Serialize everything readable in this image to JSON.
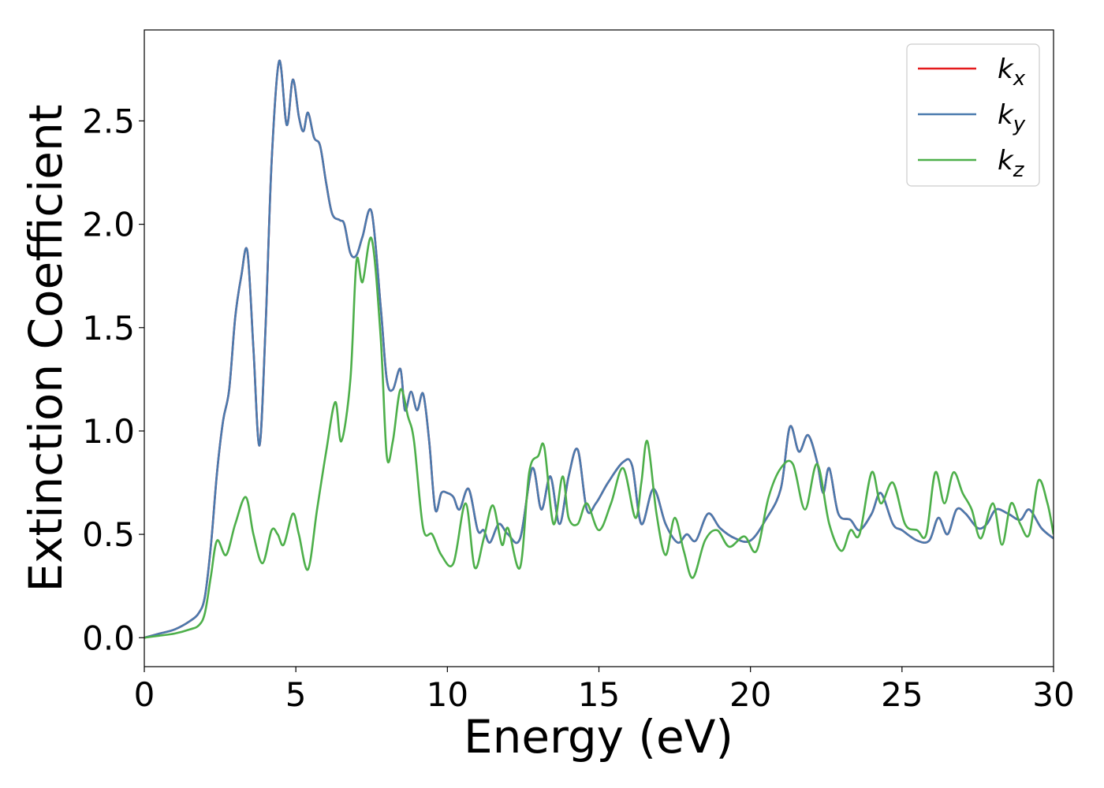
{
  "chart_data": {
    "type": "line",
    "title": "",
    "xlabel": "Energy (eV)",
    "ylabel": "Extinction Coefficient",
    "xlim": [
      0,
      30
    ],
    "ylim": [
      -0.14,
      2.94
    ],
    "xticks": [
      0,
      5,
      10,
      15,
      20,
      25,
      30
    ],
    "xtick_labels": [
      "0",
      "5",
      "10",
      "15",
      "20",
      "25",
      "30"
    ],
    "yticks": [
      0.0,
      0.5,
      1.0,
      1.5,
      2.0,
      2.5
    ],
    "ytick_labels": [
      "0.0",
      "0.5",
      "1.0",
      "1.5",
      "2.0",
      "2.5"
    ],
    "grid": false,
    "legend_position": "top-right",
    "series": [
      {
        "name": "k_x",
        "legend_base": "k",
        "legend_sub": "x",
        "color": "#e41a1c",
        "x": [
          0,
          0.5,
          1,
          1.5,
          1.8,
          2.0,
          2.2,
          2.4,
          2.6,
          2.8,
          3.0,
          3.2,
          3.4,
          3.6,
          3.8,
          4.0,
          4.2,
          4.45,
          4.7,
          4.9,
          5.1,
          5.25,
          5.4,
          5.6,
          5.8,
          6.0,
          6.2,
          6.45,
          6.6,
          6.8,
          7.0,
          7.2,
          7.5,
          7.8,
          8.0,
          8.2,
          8.45,
          8.6,
          8.8,
          9.0,
          9.2,
          9.4,
          9.6,
          9.8,
          10.0,
          10.2,
          10.4,
          10.7,
          11.0,
          11.2,
          11.4,
          11.7,
          12.0,
          12.4,
          12.8,
          13.1,
          13.4,
          13.7,
          14.0,
          14.3,
          14.6,
          14.9,
          15.3,
          15.8,
          16.1,
          16.4,
          16.8,
          17.2,
          17.6,
          17.9,
          18.2,
          18.6,
          19.0,
          19.5,
          20.0,
          20.5,
          21.0,
          21.3,
          21.6,
          21.9,
          22.2,
          22.4,
          22.6,
          22.9,
          23.3,
          23.6,
          24.0,
          24.3,
          24.7,
          25.0,
          25.5,
          25.9,
          26.2,
          26.5,
          26.8,
          27.1,
          27.5,
          27.8,
          28.1,
          28.5,
          28.9,
          29.2,
          29.6,
          30.0
        ],
        "y": [
          0.0,
          0.02,
          0.04,
          0.08,
          0.12,
          0.2,
          0.45,
          0.8,
          1.05,
          1.2,
          1.55,
          1.75,
          1.87,
          1.4,
          0.93,
          1.5,
          2.3,
          2.79,
          2.48,
          2.7,
          2.52,
          2.45,
          2.54,
          2.42,
          2.38,
          2.2,
          2.05,
          2.02,
          2.0,
          1.86,
          1.85,
          1.94,
          2.06,
          1.6,
          1.25,
          1.2,
          1.3,
          1.1,
          1.19,
          1.1,
          1.18,
          0.95,
          0.62,
          0.7,
          0.7,
          0.68,
          0.62,
          0.72,
          0.52,
          0.52,
          0.46,
          0.55,
          0.5,
          0.48,
          0.82,
          0.62,
          0.78,
          0.55,
          0.78,
          0.91,
          0.62,
          0.65,
          0.75,
          0.85,
          0.83,
          0.55,
          0.72,
          0.55,
          0.46,
          0.5,
          0.47,
          0.6,
          0.53,
          0.48,
          0.47,
          0.57,
          0.72,
          1.02,
          0.9,
          0.98,
          0.85,
          0.7,
          0.82,
          0.6,
          0.57,
          0.52,
          0.6,
          0.7,
          0.55,
          0.52,
          0.47,
          0.47,
          0.58,
          0.5,
          0.62,
          0.6,
          0.53,
          0.55,
          0.62,
          0.6,
          0.57,
          0.62,
          0.53,
          0.48
        ]
      },
      {
        "name": "k_y",
        "legend_base": "k",
        "legend_sub": "y",
        "color": "#4a7aae",
        "x": [
          0,
          0.5,
          1,
          1.5,
          1.8,
          2.0,
          2.2,
          2.4,
          2.6,
          2.8,
          3.0,
          3.2,
          3.4,
          3.6,
          3.8,
          4.0,
          4.2,
          4.45,
          4.7,
          4.9,
          5.1,
          5.25,
          5.4,
          5.6,
          5.8,
          6.0,
          6.2,
          6.45,
          6.6,
          6.8,
          7.0,
          7.2,
          7.5,
          7.8,
          8.0,
          8.2,
          8.45,
          8.6,
          8.8,
          9.0,
          9.2,
          9.4,
          9.6,
          9.8,
          10.0,
          10.2,
          10.4,
          10.7,
          11.0,
          11.2,
          11.4,
          11.7,
          12.0,
          12.4,
          12.8,
          13.1,
          13.4,
          13.7,
          14.0,
          14.3,
          14.6,
          14.9,
          15.3,
          15.8,
          16.1,
          16.4,
          16.8,
          17.2,
          17.6,
          17.9,
          18.2,
          18.6,
          19.0,
          19.5,
          20.0,
          20.5,
          21.0,
          21.3,
          21.6,
          21.9,
          22.2,
          22.4,
          22.6,
          22.9,
          23.3,
          23.6,
          24.0,
          24.3,
          24.7,
          25.0,
          25.5,
          25.9,
          26.2,
          26.5,
          26.8,
          27.1,
          27.5,
          27.8,
          28.1,
          28.5,
          28.9,
          29.2,
          29.6,
          30.0
        ],
        "y": [
          0.0,
          0.02,
          0.04,
          0.08,
          0.12,
          0.2,
          0.45,
          0.8,
          1.05,
          1.2,
          1.55,
          1.75,
          1.87,
          1.4,
          0.93,
          1.5,
          2.3,
          2.79,
          2.48,
          2.7,
          2.52,
          2.45,
          2.54,
          2.42,
          2.38,
          2.2,
          2.05,
          2.02,
          2.0,
          1.86,
          1.85,
          1.94,
          2.06,
          1.6,
          1.25,
          1.2,
          1.3,
          1.1,
          1.19,
          1.1,
          1.18,
          0.95,
          0.62,
          0.7,
          0.7,
          0.68,
          0.62,
          0.72,
          0.52,
          0.52,
          0.46,
          0.55,
          0.5,
          0.48,
          0.82,
          0.62,
          0.78,
          0.55,
          0.78,
          0.91,
          0.62,
          0.65,
          0.75,
          0.85,
          0.83,
          0.55,
          0.72,
          0.55,
          0.46,
          0.5,
          0.47,
          0.6,
          0.53,
          0.48,
          0.47,
          0.57,
          0.72,
          1.02,
          0.9,
          0.98,
          0.85,
          0.7,
          0.82,
          0.6,
          0.57,
          0.52,
          0.6,
          0.7,
          0.55,
          0.52,
          0.47,
          0.47,
          0.58,
          0.5,
          0.62,
          0.6,
          0.53,
          0.55,
          0.62,
          0.6,
          0.57,
          0.62,
          0.53,
          0.48
        ]
      },
      {
        "name": "k_z",
        "legend_base": "k",
        "legend_sub": "z",
        "color": "#4daf4a",
        "x": [
          0,
          0.5,
          1,
          1.5,
          1.8,
          2.0,
          2.2,
          2.4,
          2.7,
          3.0,
          3.35,
          3.6,
          3.9,
          4.2,
          4.4,
          4.6,
          4.9,
          5.1,
          5.4,
          5.7,
          6.0,
          6.3,
          6.5,
          6.8,
          7.0,
          7.2,
          7.5,
          7.8,
          8.0,
          8.2,
          8.45,
          8.7,
          8.9,
          9.2,
          9.5,
          9.8,
          10.2,
          10.6,
          10.9,
          11.2,
          11.5,
          11.8,
          12.0,
          12.4,
          12.7,
          13.0,
          13.2,
          13.5,
          13.8,
          14.0,
          14.3,
          14.6,
          15.0,
          15.4,
          15.8,
          16.2,
          16.4,
          16.6,
          16.9,
          17.2,
          17.5,
          17.8,
          18.1,
          18.5,
          18.9,
          19.3,
          19.8,
          20.2,
          20.6,
          21.0,
          21.4,
          21.8,
          22.2,
          22.6,
          23.0,
          23.3,
          23.6,
          24.0,
          24.3,
          24.7,
          25.1,
          25.5,
          25.8,
          26.1,
          26.4,
          26.7,
          27.0,
          27.3,
          27.6,
          28.0,
          28.3,
          28.6,
          28.9,
          29.2,
          29.5,
          29.8,
          30.0
        ],
        "y": [
          0.0,
          0.01,
          0.02,
          0.04,
          0.06,
          0.12,
          0.3,
          0.47,
          0.4,
          0.55,
          0.68,
          0.5,
          0.36,
          0.52,
          0.5,
          0.45,
          0.6,
          0.5,
          0.33,
          0.62,
          0.9,
          1.14,
          0.95,
          1.25,
          1.82,
          1.72,
          1.93,
          1.45,
          0.88,
          0.95,
          1.2,
          1.07,
          0.95,
          0.53,
          0.5,
          0.4,
          0.36,
          0.65,
          0.34,
          0.48,
          0.64,
          0.45,
          0.53,
          0.34,
          0.8,
          0.88,
          0.92,
          0.55,
          0.78,
          0.58,
          0.55,
          0.65,
          0.52,
          0.65,
          0.82,
          0.58,
          0.75,
          0.95,
          0.6,
          0.4,
          0.58,
          0.42,
          0.29,
          0.47,
          0.52,
          0.44,
          0.49,
          0.42,
          0.68,
          0.82,
          0.84,
          0.62,
          0.84,
          0.55,
          0.42,
          0.52,
          0.5,
          0.8,
          0.65,
          0.75,
          0.55,
          0.52,
          0.5,
          0.8,
          0.65,
          0.8,
          0.7,
          0.62,
          0.48,
          0.65,
          0.45,
          0.65,
          0.55,
          0.5,
          0.76,
          0.65,
          0.5
        ]
      }
    ]
  }
}
